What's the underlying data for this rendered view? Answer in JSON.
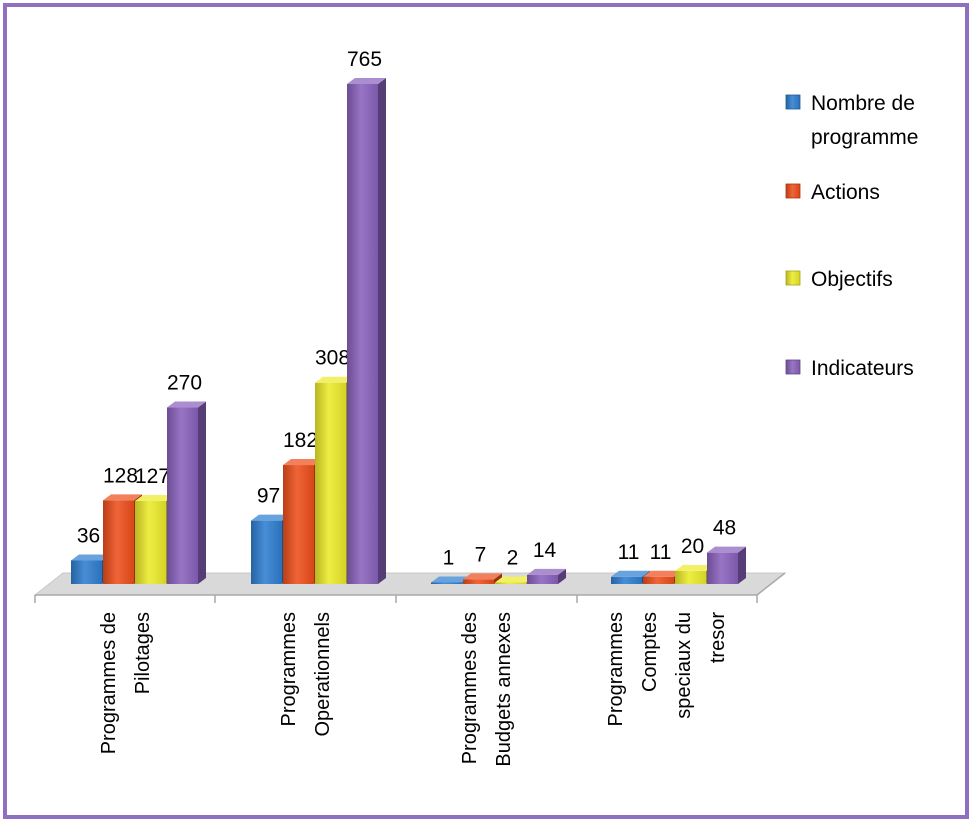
{
  "chart_data": {
    "type": "bar",
    "categories": [
      [
        "Programmes de",
        "Pilotages"
      ],
      [
        "Programmes",
        "Operationnels"
      ],
      [
        "Programmes des",
        "Budgets annexes"
      ],
      [
        "Programmes",
        "Comptes",
        "speciaux du",
        "tresor"
      ]
    ],
    "series": [
      {
        "name": "Nombre de programme",
        "label_lines": [
          "Nombre de",
          "programme"
        ],
        "values": [
          36,
          97,
          1,
          11
        ],
        "color": "#2f7fd0"
      },
      {
        "name": "Actions",
        "label_lines": [
          "Actions"
        ],
        "values": [
          128,
          182,
          7,
          11
        ],
        "color": "#ee4f1c"
      },
      {
        "name": "Objectifs",
        "label_lines": [
          "Objectifs"
        ],
        "values": [
          127,
          308,
          2,
          20
        ],
        "color": "#ecea2a"
      },
      {
        "name": "Indicateurs",
        "label_lines": [
          "Indicateurs"
        ],
        "values": [
          270,
          765,
          14,
          48
        ],
        "color": "#8a62bd"
      }
    ],
    "ylim": [
      0,
      800
    ],
    "grid": false,
    "legend_position": "right",
    "chart_style": "3d-clustered-column",
    "colors": {
      "frame": "#8f6fc0",
      "axis": "#a9a9a9",
      "floor": "#d9d9d9"
    }
  }
}
